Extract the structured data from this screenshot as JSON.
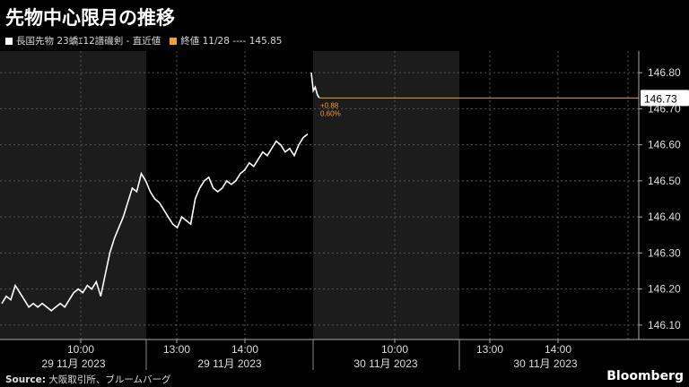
{
  "title": "先物中心限月の推移",
  "legend": {
    "series_label": "長国先物 23蟜ｴ12譜磯剣 - 直近値",
    "prev_close_label": "終値 11/28 ---- 145.85",
    "series_color": "#ffffff",
    "prev_close_color": "#f0a030"
  },
  "last_value_tag": "146.73",
  "change_labels": [
    "+0.88",
    "0.60%"
  ],
  "footer": {
    "source_label": "Source:",
    "source_text": " 大阪取引所、ブルームバーグ",
    "brand": "Bloomberg"
  },
  "chart_data": {
    "type": "line",
    "y_ticks": [
      "146.10",
      "146.20",
      "146.30",
      "146.40",
      "146.50",
      "146.60",
      "146.70",
      "146.80"
    ],
    "y_range": [
      146.06,
      146.86
    ],
    "x_time_labels": [
      "10:00",
      "13:00",
      "14:00",
      "10:00",
      "13:00",
      "14:00"
    ],
    "x_date_labels": [
      "29 11月 2023",
      "29 11月 2023",
      "30 11月 2023",
      "30 11月 2023"
    ],
    "last_value": 146.73,
    "series": [
      {
        "values": [
          146.16,
          146.18,
          146.17,
          146.21,
          146.19,
          146.17,
          146.15,
          146.16,
          146.15,
          146.16,
          146.15,
          146.14,
          146.15,
          146.16,
          146.15,
          146.17,
          146.19,
          146.2,
          146.19,
          146.21,
          146.2,
          146.22,
          146.18,
          146.24,
          146.3,
          146.34,
          146.37,
          146.4,
          146.44,
          146.48,
          146.47,
          146.52,
          146.5,
          146.47,
          146.45,
          146.44,
          146.42,
          146.4,
          146.38,
          146.37,
          146.4,
          146.39,
          146.38,
          146.45,
          146.48,
          146.5,
          146.51,
          146.48,
          146.47,
          146.48,
          146.5,
          146.49,
          146.5,
          146.52,
          146.53,
          146.55,
          146.54,
          146.56,
          146.58,
          146.57,
          146.59,
          146.61,
          146.6,
          146.58,
          146.59,
          146.57,
          146.6,
          146.62,
          146.63,
          146.8,
          146.75,
          146.76,
          146.74,
          146.73
        ]
      }
    ]
  }
}
